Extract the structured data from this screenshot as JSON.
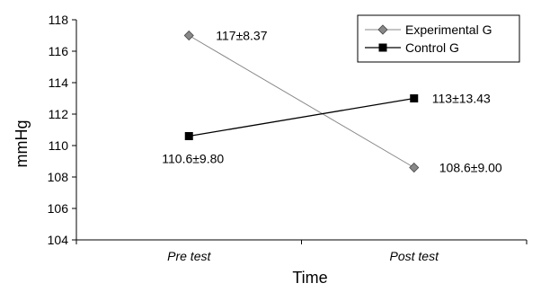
{
  "chart_data": {
    "type": "line",
    "title": "",
    "xlabel": "Time",
    "ylabel": "mmHg",
    "categories": [
      "Pre test",
      "Post test"
    ],
    "ylim": [
      104,
      118
    ],
    "yticks": [
      "104",
      "106",
      "108",
      "110",
      "112",
      "114",
      "116",
      "118"
    ],
    "grid": false,
    "legend_position": "top-right",
    "series": [
      {
        "name": "Experimental G",
        "values": [
          117,
          108.6
        ],
        "labels": [
          "117±8.37",
          "108.6±9.00"
        ],
        "marker": "diamond",
        "color": "#888888"
      },
      {
        "name": "Control G",
        "values": [
          110.6,
          113
        ],
        "labels": [
          "110.6±9.80",
          "113±13.43"
        ],
        "marker": "square",
        "color": "#000000"
      }
    ]
  }
}
